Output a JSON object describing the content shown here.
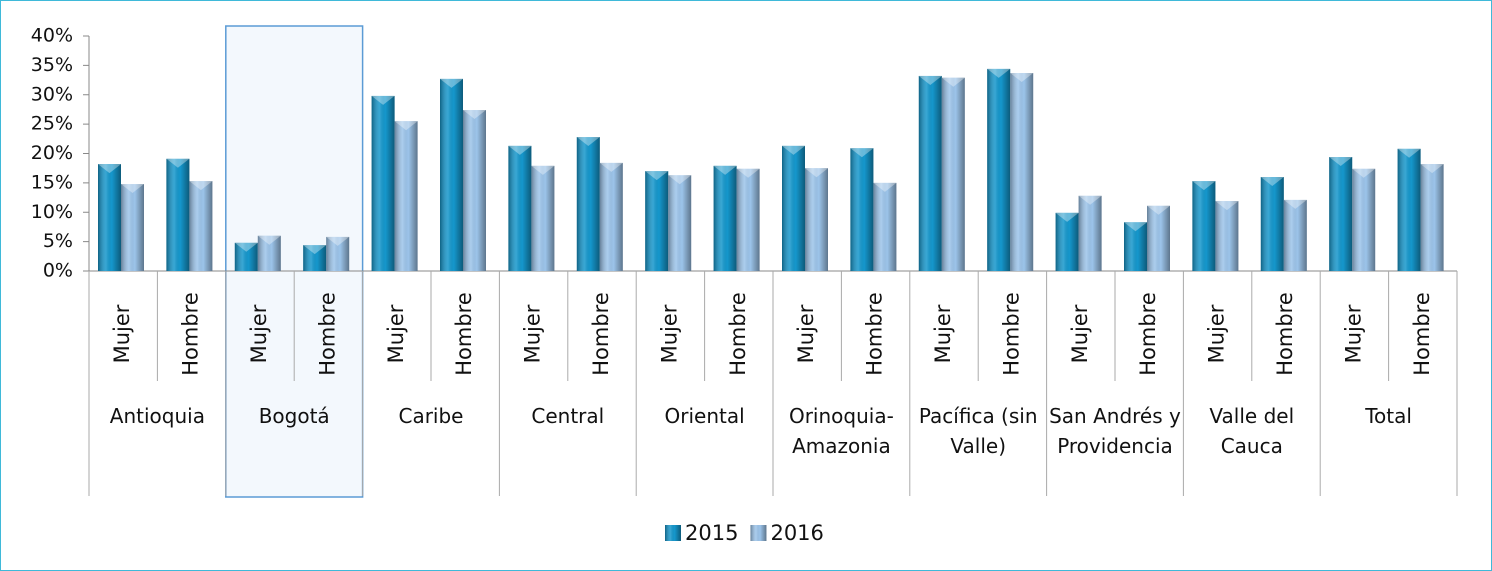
{
  "chart_data": {
    "type": "bar",
    "categories": [
      "Mujer",
      "Hombre",
      "Mujer",
      "Hombre",
      "Mujer",
      "Hombre",
      "Mujer",
      "Hombre",
      "Mujer",
      "Hombre",
      "Mujer",
      "Hombre",
      "Mujer",
      "Hombre",
      "Mujer",
      "Hombre",
      "Mujer",
      "Hombre",
      "Mujer",
      "Hombre"
    ],
    "groups": [
      "Antioquia",
      "Bogotá",
      "Caribe",
      "Central",
      "Oriental",
      "Orinoquia-Amazonia",
      "Pacífica (sin Valle)",
      "San Andrés y Providencia",
      "Valle del Cauca",
      "Total"
    ],
    "series": [
      {
        "name": "2015",
        "color": "#1597cc",
        "values": [
          18.2,
          19.1,
          4.8,
          4.4,
          29.8,
          32.7,
          21.3,
          22.8,
          17.0,
          17.9,
          21.3,
          20.9,
          33.2,
          34.4,
          9.9,
          8.3,
          15.3,
          16.0,
          19.4,
          20.8
        ]
      },
      {
        "name": "2016",
        "color": "#9cc4ea",
        "values": [
          14.8,
          15.3,
          6.0,
          5.8,
          25.5,
          27.4,
          17.9,
          18.4,
          16.3,
          17.4,
          17.5,
          15.0,
          32.9,
          33.7,
          12.8,
          11.1,
          11.9,
          12.1,
          17.4,
          18.2
        ]
      }
    ],
    "ylim": [
      0,
      40
    ],
    "yticks": [
      {
        "value": 0,
        "label": "0%"
      },
      {
        "value": 5,
        "label": "5%"
      },
      {
        "value": 10,
        "label": "10%"
      },
      {
        "value": 15,
        "label": "15%"
      },
      {
        "value": 20,
        "label": "20%"
      },
      {
        "value": 25,
        "label": "25%"
      },
      {
        "value": 30,
        "label": "30%"
      },
      {
        "value": 35,
        "label": "35%"
      },
      {
        "value": 40,
        "label": "40%"
      }
    ],
    "highlight_group": "Bogotá",
    "legend": "bottom"
  }
}
